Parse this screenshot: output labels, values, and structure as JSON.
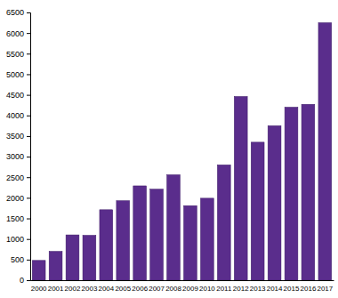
{
  "chart_data": {
    "type": "bar",
    "categories": [
      "2000",
      "2001",
      "2002",
      "2003",
      "2004",
      "2005",
      "2006",
      "2007",
      "2008",
      "2009",
      "2010",
      "2011",
      "2012",
      "2013",
      "2014",
      "2015",
      "2016",
      "2017"
    ],
    "values": [
      480,
      700,
      1100,
      1090,
      1710,
      1930,
      2290,
      2210,
      2560,
      1810,
      1990,
      2800,
      4460,
      3350,
      3750,
      4200,
      4270,
      6250
    ],
    "color": "#5a2d8c",
    "ylim": [
      0,
      6500
    ],
    "yticks": [
      0,
      500,
      1000,
      1500,
      2000,
      2500,
      3000,
      3500,
      4000,
      4500,
      5000,
      5500,
      6000,
      6500
    ],
    "grid": false
  }
}
